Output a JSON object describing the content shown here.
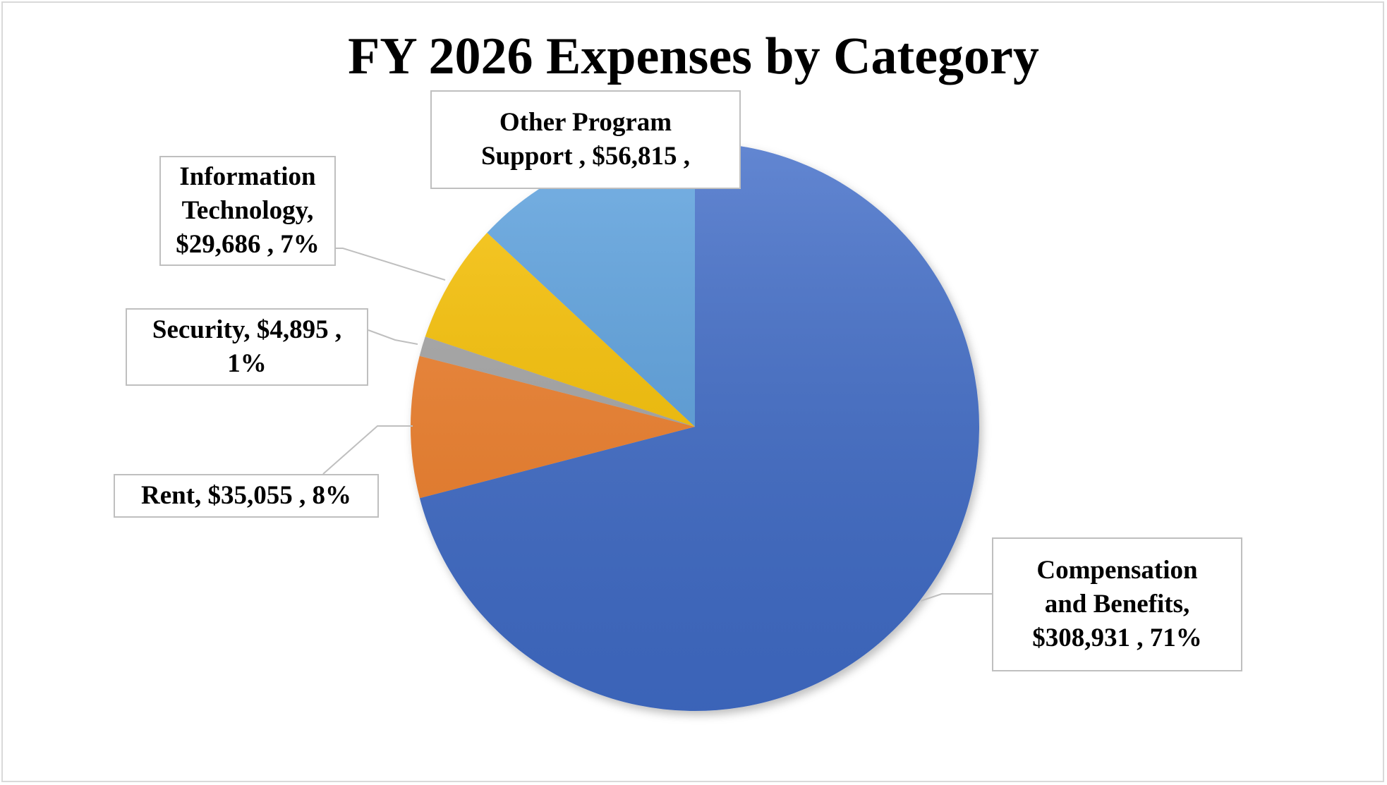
{
  "chart_data": {
    "type": "pie",
    "title": "FY 2026 Expenses by Category",
    "slices": [
      {
        "label": "Compensation and Benefits",
        "value": 308931,
        "percent": 71,
        "color": "#3f6cc8",
        "data_label": "Compensation\nand Benefits,\n$308,931 , 71%"
      },
      {
        "label": "Rent",
        "value": 35055,
        "percent": 8,
        "color": "#f07f2a",
        "data_label": "Rent,  $35,055 , 8%"
      },
      {
        "label": "Security",
        "value": 4895,
        "percent": 1,
        "color": "#a5a5a5",
        "data_label": "Security,  $4,895 ,\n1%"
      },
      {
        "label": "Information Technology",
        "value": 29686,
        "percent": 7,
        "color": "#f9c106",
        "data_label": "Information\nTechnology,\n$29,686 , 7%"
      },
      {
        "label": "Other Program Support",
        "value": 56815,
        "percent": null,
        "color": "#5aa0de",
        "data_label": "Other Program\nSupport ,  $56,815 ,"
      }
    ]
  }
}
